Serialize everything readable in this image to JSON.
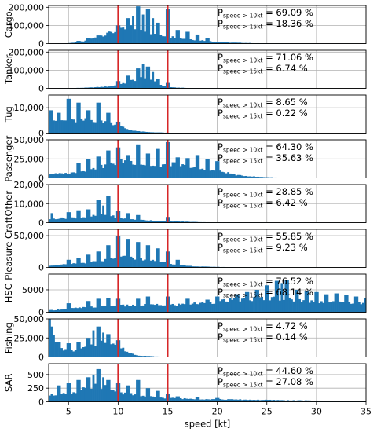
{
  "chart_data": [
    {
      "type": "bar",
      "ylabel": "Cargo",
      "ylim": [
        0,
        210000
      ],
      "yticks": [
        0,
        100000,
        200000
      ],
      "ytick_labels": [
        "0",
        "100,000",
        "200,000"
      ],
      "annot1": {
        "base": "P",
        "sub": "speed > 10kt",
        "rest": "= 69.09 %"
      },
      "annot2": {
        "base": "P",
        "sub": "speed > 15kt",
        "rest": "= 18.36 %"
      },
      "profile": [
        [
          3,
          0
        ],
        [
          5,
          2000
        ],
        [
          6.5,
          12000
        ],
        [
          8,
          40000
        ],
        [
          10,
          70000
        ],
        [
          11.5,
          90000
        ],
        [
          12.5,
          80000
        ],
        [
          13.5,
          55000
        ],
        [
          15,
          40000
        ],
        [
          17,
          25000
        ],
        [
          19,
          15000
        ],
        [
          21,
          6000
        ],
        [
          24,
          2000
        ],
        [
          28,
          600
        ],
        [
          35,
          0
        ]
      ],
      "spikes": [
        [
          6,
          15000
        ],
        [
          7,
          30000
        ],
        [
          8,
          45000
        ],
        [
          9,
          60000
        ],
        [
          10,
          100000
        ],
        [
          11,
          140000
        ],
        [
          11.5,
          150000
        ],
        [
          12,
          205000
        ],
        [
          12.5,
          160000
        ],
        [
          13,
          190000
        ],
        [
          13.5,
          140000
        ],
        [
          14,
          115000
        ],
        [
          15,
          190000
        ],
        [
          16,
          75000
        ],
        [
          17,
          65000
        ],
        [
          18,
          50000
        ],
        [
          19,
          30000
        ]
      ]
    },
    {
      "type": "bar",
      "ylabel": "Tanker",
      "ylim": [
        0,
        210000
      ],
      "yticks": [
        0,
        100000,
        200000
      ],
      "ytick_labels": [
        "0",
        "100,000",
        "200,000"
      ],
      "annot1": {
        "base": "P",
        "sub": "speed > 10kt",
        "rest": "= 71.06 %"
      },
      "annot2": {
        "base": "P",
        "sub": "speed > 15kt",
        "rest": "= 6.74 %"
      },
      "profile": [
        [
          3,
          0
        ],
        [
          5,
          1000
        ],
        [
          7,
          4000
        ],
        [
          9,
          10000
        ],
        [
          10.5,
          25000
        ],
        [
          11.5,
          45000
        ],
        [
          12.5,
          60000
        ],
        [
          13.5,
          45000
        ],
        [
          14.5,
          15000
        ],
        [
          15.5,
          5000
        ],
        [
          17,
          2000
        ],
        [
          20,
          600
        ],
        [
          35,
          0
        ]
      ],
      "spikes": [
        [
          10,
          40000
        ],
        [
          11,
          70000
        ],
        [
          12,
          110000
        ],
        [
          12.5,
          135000
        ],
        [
          13,
          120000
        ],
        [
          13.5,
          90000
        ],
        [
          14,
          50000
        ],
        [
          15,
          30000
        ]
      ]
    },
    {
      "type": "bar",
      "ylabel": "Tug",
      "ylim": [
        0,
        15000
      ],
      "yticks": [
        0,
        10000
      ],
      "ytick_labels": [
        "0",
        "10,000"
      ],
      "annot1": {
        "base": "P",
        "sub": "speed > 10kt",
        "rest": "= 8.65 %"
      },
      "annot2": {
        "base": "P",
        "sub": "speed > 15kt",
        "rest": "= 0.22 %"
      },
      "profile": [
        [
          3,
          5500
        ],
        [
          4,
          5000
        ],
        [
          5,
          4800
        ],
        [
          6,
          4800
        ],
        [
          7,
          5200
        ],
        [
          8,
          5000
        ],
        [
          9,
          4500
        ],
        [
          10,
          3000
        ],
        [
          11,
          1500
        ],
        [
          12,
          700
        ],
        [
          13,
          400
        ],
        [
          15,
          150
        ],
        [
          18,
          0
        ],
        [
          35,
          0
        ]
      ],
      "spikes": [
        [
          3.2,
          9000
        ],
        [
          4,
          8000
        ],
        [
          5,
          13500
        ],
        [
          6,
          12000
        ],
        [
          7,
          9000
        ],
        [
          8,
          12000
        ],
        [
          9,
          8000
        ],
        [
          10,
          4500
        ]
      ]
    },
    {
      "type": "bar",
      "ylabel": "Passenger",
      "ylim": [
        0,
        50000
      ],
      "yticks": [
        0,
        25000,
        50000
      ],
      "ytick_labels": [
        "0",
        "25,000",
        "50,000"
      ],
      "annot1": {
        "base": "P",
        "sub": "speed > 10kt",
        "rest": "= 64.30 %"
      },
      "annot2": {
        "base": "P",
        "sub": "speed > 15kt",
        "rest": "= 35.63 %"
      },
      "profile": [
        [
          3,
          5000
        ],
        [
          5,
          6000
        ],
        [
          7,
          10000
        ],
        [
          9,
          17000
        ],
        [
          10.5,
          22000
        ],
        [
          12,
          20000
        ],
        [
          13,
          16000
        ],
        [
          14,
          15000
        ],
        [
          15,
          19000
        ],
        [
          16,
          17000
        ],
        [
          17,
          15000
        ],
        [
          18,
          12000
        ],
        [
          19,
          10000
        ],
        [
          20,
          9000
        ],
        [
          21,
          7000
        ],
        [
          22,
          3500
        ],
        [
          24,
          1500
        ],
        [
          26,
          500
        ],
        [
          30,
          100
        ],
        [
          35,
          0
        ]
      ],
      "spikes": [
        [
          6,
          20000
        ],
        [
          7,
          25000
        ],
        [
          8,
          28000
        ],
        [
          9,
          36000
        ],
        [
          10,
          40000
        ],
        [
          11,
          30000
        ],
        [
          12,
          44000
        ],
        [
          13,
          32000
        ],
        [
          14,
          38000
        ],
        [
          15,
          47000
        ],
        [
          16,
          27000
        ],
        [
          17,
          26000
        ],
        [
          18,
          30000
        ],
        [
          19,
          25000
        ],
        [
          20,
          22000
        ]
      ]
    },
    {
      "type": "bar",
      "ylabel": "Other",
      "ylim": [
        0,
        20000
      ],
      "yticks": [
        0,
        10000,
        20000
      ],
      "ytick_labels": [
        "0",
        "10,000",
        "20,000"
      ],
      "annot1": {
        "base": "P",
        "sub": "speed > 10kt",
        "rest": "= 28.85 %"
      },
      "annot2": {
        "base": "P",
        "sub": "speed > 15kt",
        "rest": "= 6.42 %"
      },
      "profile": [
        [
          3,
          2000
        ],
        [
          5,
          2500
        ],
        [
          7,
          3000
        ],
        [
          8,
          4000
        ],
        [
          9,
          4000
        ],
        [
          10,
          2500
        ],
        [
          12,
          1500
        ],
        [
          14,
          1000
        ],
        [
          16,
          600
        ],
        [
          18,
          300
        ],
        [
          20,
          100
        ],
        [
          35,
          0
        ]
      ],
      "spikes": [
        [
          3.3,
          5000
        ],
        [
          5,
          5500
        ],
        [
          6,
          6500
        ],
        [
          7,
          7000
        ],
        [
          8,
          12000
        ],
        [
          8.5,
          9000
        ],
        [
          9,
          14000
        ],
        [
          10,
          6000
        ],
        [
          11,
          5000
        ],
        [
          12,
          4000
        ],
        [
          15,
          3000
        ]
      ]
    },
    {
      "type": "bar",
      "ylabel": "Pleasure Craft",
      "ylim": [
        0,
        60000
      ],
      "yticks": [
        0,
        50000
      ],
      "ytick_labels": [
        "0",
        "50,000"
      ],
      "annot1": {
        "base": "P",
        "sub": "speed > 10kt",
        "rest": "= 55.85 %"
      },
      "annot2": {
        "base": "P",
        "sub": "speed > 15kt",
        "rest": "= 9.23 %"
      },
      "profile": [
        [
          3,
          3000
        ],
        [
          5,
          5000
        ],
        [
          7,
          8000
        ],
        [
          9,
          12000
        ],
        [
          10.5,
          16000
        ],
        [
          12,
          14000
        ],
        [
          13.5,
          11000
        ],
        [
          15,
          7000
        ],
        [
          16.5,
          3000
        ],
        [
          18,
          1500
        ],
        [
          21,
          500
        ],
        [
          25,
          100
        ],
        [
          35,
          0
        ]
      ],
      "spikes": [
        [
          5,
          12000
        ],
        [
          6,
          15000
        ],
        [
          7,
          20000
        ],
        [
          8,
          25000
        ],
        [
          9,
          35000
        ],
        [
          10,
          50000
        ],
        [
          11,
          45000
        ],
        [
          12,
          40000
        ],
        [
          13,
          35000
        ],
        [
          14,
          30000
        ],
        [
          15,
          25000
        ],
        [
          16,
          12000
        ]
      ]
    },
    {
      "type": "bar",
      "ylabel": "HSC",
      "ylim": [
        0,
        8500
      ],
      "yticks": [
        0,
        5000
      ],
      "ytick_labels": [
        "0",
        "5000"
      ],
      "annot1": {
        "base": "P",
        "sub": "speed > 10kt",
        "rest": "= 76.52 %"
      },
      "annot2": {
        "base": "P",
        "sub": "speed > 15kt",
        "rest": "= 68.14 %"
      },
      "profile": [
        [
          3,
          400
        ],
        [
          5,
          800
        ],
        [
          7,
          1100
        ],
        [
          9,
          1300
        ],
        [
          11,
          1500
        ],
        [
          13,
          1600
        ],
        [
          15,
          1600
        ],
        [
          17,
          1800
        ],
        [
          19,
          2100
        ],
        [
          21,
          2600
        ],
        [
          23,
          2900
        ],
        [
          25,
          3200
        ],
        [
          27,
          2900
        ],
        [
          29,
          2500
        ],
        [
          31,
          2300
        ],
        [
          33,
          2100
        ],
        [
          35,
          2000
        ]
      ],
      "spikes": [
        [
          5,
          2000
        ],
        [
          7,
          2500
        ],
        [
          8,
          3000
        ],
        [
          9,
          3200
        ],
        [
          10,
          3000
        ],
        [
          12,
          3000
        ],
        [
          13,
          3500
        ],
        [
          15,
          3500
        ],
        [
          17,
          3000
        ],
        [
          19,
          2800
        ],
        [
          20,
          3500
        ],
        [
          22,
          4000
        ],
        [
          23,
          4500
        ],
        [
          24,
          5000
        ],
        [
          25,
          6000
        ],
        [
          26,
          7000
        ],
        [
          26.5,
          6500
        ],
        [
          27,
          7200
        ],
        [
          28,
          5000
        ],
        [
          29,
          4800
        ],
        [
          30,
          4500
        ],
        [
          31,
          4000
        ],
        [
          32,
          4200
        ],
        [
          33,
          3800
        ],
        [
          34,
          3500
        ],
        [
          35,
          3200
        ]
      ]
    },
    {
      "type": "bar",
      "ylabel": "Fishing",
      "ylim": [
        0,
        50000
      ],
      "yticks": [
        0,
        25000,
        50000
      ],
      "ytick_labels": [
        "0",
        "25,000",
        "50,000"
      ],
      "annot1": {
        "base": "P",
        "sub": "speed > 10kt",
        "rest": "= 4.72 %"
      },
      "annot2": {
        "base": "P",
        "sub": "speed > 15kt",
        "rest": "= 0.14 %"
      },
      "profile": [
        [
          3,
          30000
        ],
        [
          3.5,
          25000
        ],
        [
          4,
          12000
        ],
        [
          5,
          8000
        ],
        [
          6,
          9000
        ],
        [
          7,
          14000
        ],
        [
          8,
          19000
        ],
        [
          9,
          20000
        ],
        [
          10,
          15000
        ],
        [
          11,
          6000
        ],
        [
          12,
          2000
        ],
        [
          14,
          500
        ],
        [
          16,
          100
        ],
        [
          35,
          0
        ]
      ],
      "spikes": [
        [
          3,
          50000
        ],
        [
          3.3,
          40000
        ],
        [
          4,
          20000
        ],
        [
          5,
          18000
        ],
        [
          6,
          20000
        ],
        [
          7,
          25000
        ],
        [
          7.5,
          35000
        ],
        [
          8,
          40000
        ],
        [
          8.5,
          32000
        ],
        [
          9,
          30000
        ],
        [
          10,
          22000
        ]
      ]
    },
    {
      "type": "bar",
      "ylabel": "SAR",
      "ylim": [
        0,
        700
      ],
      "yticks": [
        0,
        250,
        500
      ],
      "ytick_labels": [
        "0",
        "250",
        "500"
      ],
      "annot1": {
        "base": "P",
        "sub": "speed > 10kt",
        "rest": "= 44.60 %"
      },
      "annot2": {
        "base": "P",
        "sub": "speed > 15kt",
        "rest": "= 27.08 %"
      },
      "profile": [
        [
          3,
          120
        ],
        [
          5,
          150
        ],
        [
          7,
          250
        ],
        [
          8,
          300
        ],
        [
          9,
          260
        ],
        [
          10,
          180
        ],
        [
          12,
          110
        ],
        [
          14,
          80
        ],
        [
          16,
          60
        ],
        [
          18,
          50
        ],
        [
          20,
          45
        ],
        [
          22,
          40
        ],
        [
          24,
          35
        ],
        [
          26,
          30
        ],
        [
          28,
          25
        ],
        [
          30,
          20
        ],
        [
          32,
          15
        ],
        [
          35,
          10
        ]
      ],
      "spikes": [
        [
          4,
          300
        ],
        [
          5,
          350
        ],
        [
          6,
          400
        ],
        [
          7,
          450
        ],
        [
          7.5,
          500
        ],
        [
          8,
          600
        ],
        [
          8.5,
          450
        ],
        [
          9,
          400
        ],
        [
          10,
          350
        ],
        [
          11,
          300
        ],
        [
          12,
          400
        ],
        [
          13,
          250
        ],
        [
          14,
          200
        ],
        [
          15,
          150
        ],
        [
          16,
          100
        ],
        [
          18,
          80
        ],
        [
          20,
          70
        ]
      ]
    }
  ],
  "x_axis": {
    "label": "speed [kt]",
    "xlim": [
      3,
      35
    ],
    "ticks": [
      5,
      10,
      15,
      20,
      25,
      30,
      35
    ],
    "tick_labels": [
      "5",
      "10",
      "15",
      "20",
      "25",
      "30",
      "35"
    ]
  },
  "reference_lines": [
    10,
    15
  ],
  "colors": {
    "bar": "#1f77b4",
    "reference_line": "#d62728",
    "grid": "#b0b0b0"
  }
}
